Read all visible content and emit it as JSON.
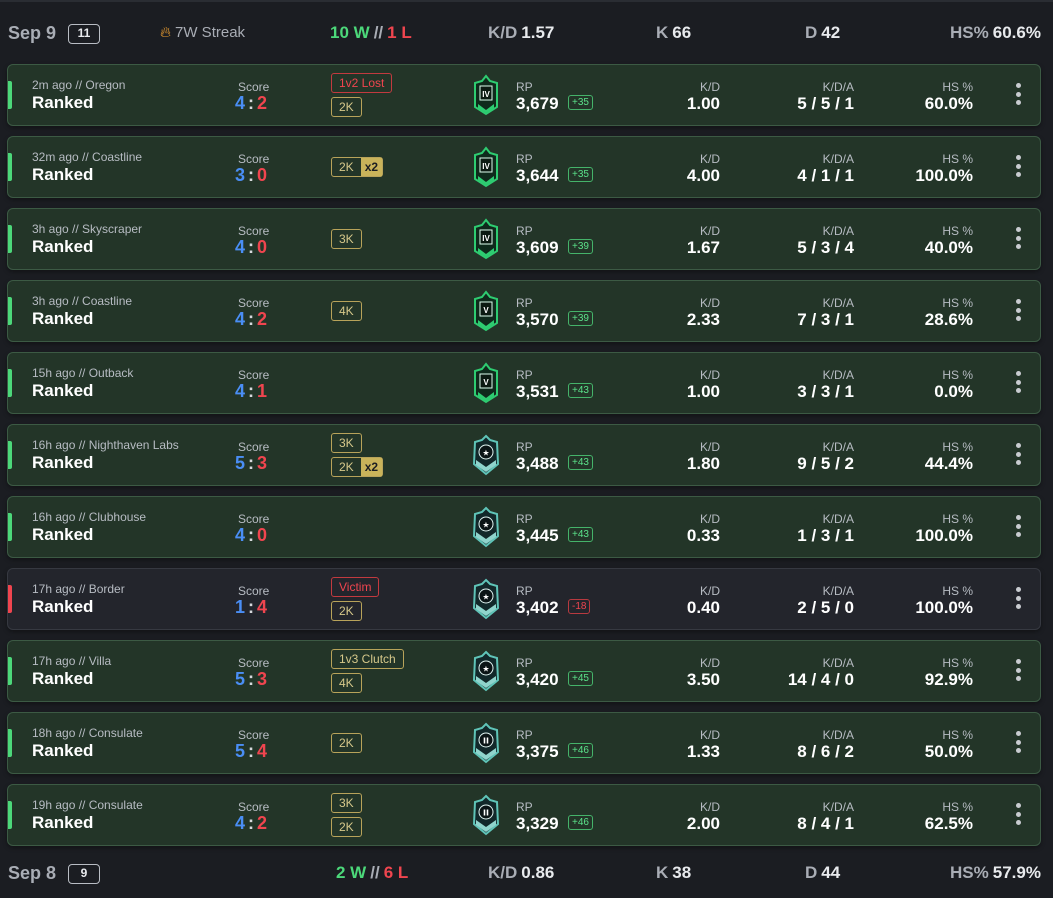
{
  "days": [
    {
      "date": "Sep 9",
      "count": "11",
      "streak": "7W Streak",
      "wins": "10 W",
      "sep": "//",
      "losses": "1 L",
      "kd_label": "K/D",
      "kd": "1.57",
      "k_label": "K",
      "k": "66",
      "d_label": "D",
      "d": "42",
      "hs_label": "HS%",
      "hs": "60.6%"
    },
    {
      "date": "Sep 8",
      "count": "9",
      "wins": "2 W",
      "sep": "//",
      "losses": "6 L",
      "kd_label": "K/D",
      "kd": "0.86",
      "k_label": "K",
      "k": "38",
      "d_label": "D",
      "d": "44",
      "hs_label": "HS%",
      "hs": "57.9%"
    }
  ],
  "labels": {
    "score": "Score",
    "rp": "RP",
    "kd": "K/D",
    "kda": "K/D/A",
    "hs": "HS %",
    "score_sep": ":"
  },
  "matches": [
    {
      "meta": "2m ago // Oregon",
      "mode": "Ranked",
      "s1": "4",
      "s2": "2",
      "result": "win",
      "tags": [
        {
          "text": "1v2 Lost",
          "style": "red"
        },
        {
          "text": "2K"
        }
      ],
      "rank": "IV",
      "rank_tier": "emerald",
      "rp": "3,679",
      "delta": "+35",
      "kd": "1.00",
      "kda": "5 / 5 / 1",
      "hs": "60.0%"
    },
    {
      "meta": "32m ago // Coastline",
      "mode": "Ranked",
      "s1": "3",
      "s2": "0",
      "result": "win",
      "tags": [
        {
          "text": "2K",
          "mult": "x2"
        }
      ],
      "rank": "IV",
      "rank_tier": "emerald",
      "rp": "3,644",
      "delta": "+35",
      "kd": "4.00",
      "kda": "4 / 1 / 1",
      "hs": "100.0%"
    },
    {
      "meta": "3h ago // Skyscraper",
      "mode": "Ranked",
      "s1": "4",
      "s2": "0",
      "result": "win",
      "tags": [
        {
          "text": "3K"
        }
      ],
      "rank": "IV",
      "rank_tier": "emerald",
      "rp": "3,609",
      "delta": "+39",
      "kd": "1.67",
      "kda": "5 / 3 / 4",
      "hs": "40.0%"
    },
    {
      "meta": "3h ago // Coastline",
      "mode": "Ranked",
      "s1": "4",
      "s2": "2",
      "result": "win",
      "tags": [
        {
          "text": "4K"
        }
      ],
      "rank": "V",
      "rank_tier": "emerald",
      "rp": "3,570",
      "delta": "+39",
      "kd": "2.33",
      "kda": "7 / 3 / 1",
      "hs": "28.6%"
    },
    {
      "meta": "15h ago // Outback",
      "mode": "Ranked",
      "s1": "4",
      "s2": "1",
      "result": "win",
      "tags": [],
      "rank": "V",
      "rank_tier": "emerald",
      "rp": "3,531",
      "delta": "+43",
      "kd": "1.00",
      "kda": "3 / 3 / 1",
      "hs": "0.0%"
    },
    {
      "meta": "16h ago // Nighthaven Labs",
      "mode": "Ranked",
      "s1": "5",
      "s2": "3",
      "result": "win",
      "tags": [
        {
          "text": "3K"
        },
        {
          "text": "2K",
          "mult": "x2"
        }
      ],
      "rank": "★",
      "rank_tier": "platinum",
      "rp": "3,488",
      "delta": "+43",
      "kd": "1.80",
      "kda": "9 / 5 / 2",
      "hs": "44.4%"
    },
    {
      "meta": "16h ago // Clubhouse",
      "mode": "Ranked",
      "s1": "4",
      "s2": "0",
      "result": "win",
      "tags": [],
      "rank": "★",
      "rank_tier": "platinum",
      "rp": "3,445",
      "delta": "+43",
      "kd": "0.33",
      "kda": "1 / 3 / 1",
      "hs": "100.0%"
    },
    {
      "meta": "17h ago // Border",
      "mode": "Ranked",
      "s1": "1",
      "s2": "4",
      "result": "loss",
      "tags": [
        {
          "text": "Victim",
          "style": "red"
        },
        {
          "text": "2K"
        }
      ],
      "rank": "★",
      "rank_tier": "platinum",
      "rp": "3,402",
      "delta": "-18",
      "kd": "0.40",
      "kda": "2 / 5 / 0",
      "hs": "100.0%"
    },
    {
      "meta": "17h ago // Villa",
      "mode": "Ranked",
      "s1": "5",
      "s2": "3",
      "result": "win",
      "tags": [
        {
          "text": "1v3 Clutch"
        },
        {
          "text": "4K"
        }
      ],
      "rank": "★",
      "rank_tier": "platinum",
      "rp": "3,420",
      "delta": "+45",
      "kd": "3.50",
      "kda": "14 / 4 / 0",
      "hs": "92.9%"
    },
    {
      "meta": "18h ago // Consulate",
      "mode": "Ranked",
      "s1": "5",
      "s2": "4",
      "result": "win",
      "tags": [
        {
          "text": "2K"
        }
      ],
      "rank": "II",
      "rank_tier": "platinum",
      "rp": "3,375",
      "delta": "+46",
      "kd": "1.33",
      "kda": "8 / 6 / 2",
      "hs": "50.0%"
    },
    {
      "meta": "19h ago // Consulate",
      "mode": "Ranked",
      "s1": "4",
      "s2": "2",
      "result": "win",
      "tags": [
        {
          "text": "3K"
        },
        {
          "text": "2K"
        }
      ],
      "rank": "II",
      "rank_tier": "platinum",
      "rp": "3,329",
      "delta": "+46",
      "kd": "2.00",
      "kda": "8 / 4 / 1",
      "hs": "62.5%"
    }
  ],
  "colors": {
    "win": "#4cd87a",
    "loss": "#f0454f",
    "blue_score": "#4a8ef5",
    "emerald": "#2ecc71",
    "platinum": "#5fc4b8"
  }
}
